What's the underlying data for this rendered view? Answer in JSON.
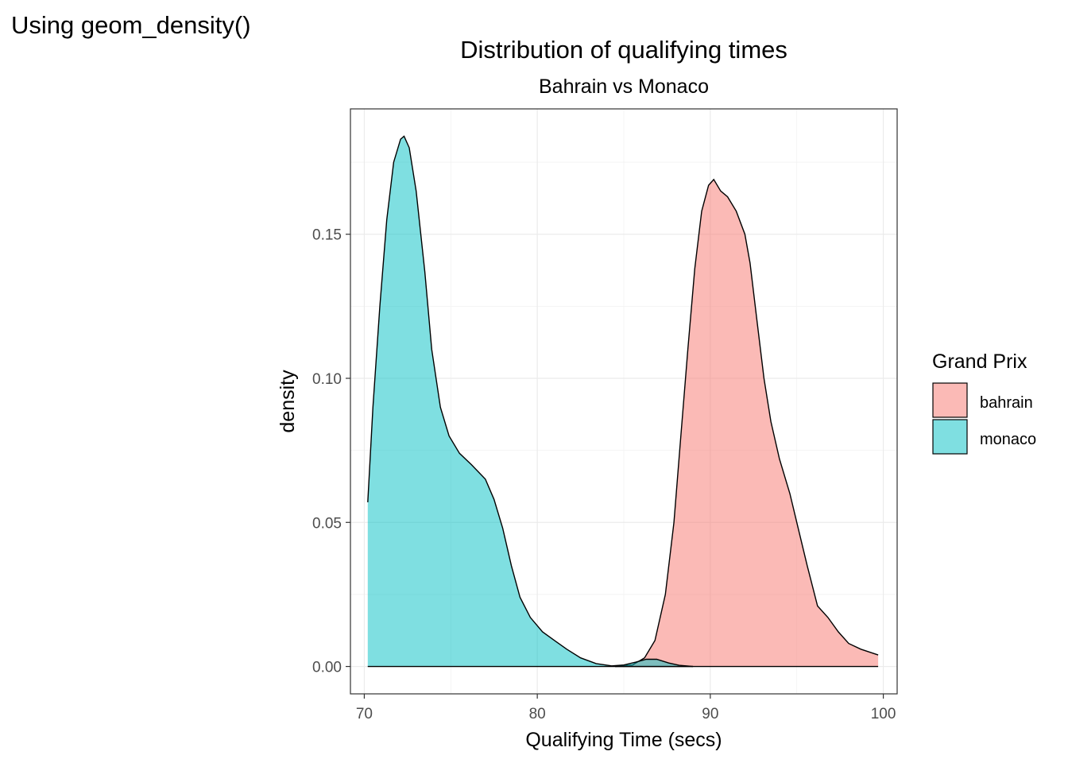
{
  "page_heading": "Using geom_density()",
  "chart_data": {
    "type": "area",
    "subtype": "density",
    "title": "Distribution of qualifying times",
    "subtitle": "Bahrain vs Monaco",
    "xlabel": "Qualifying Time (secs)",
    "ylabel": "density",
    "xlim": [
      69.2,
      100.8
    ],
    "ylim": [
      -0.0095,
      0.1935
    ],
    "x_ticks": [
      70,
      80,
      90,
      100
    ],
    "x_tick_labels": [
      "70",
      "80",
      "90",
      "100"
    ],
    "y_ticks": [
      0,
      0.05,
      0.1,
      0.15
    ],
    "y_tick_labels": [
      "0.00",
      "0.05",
      "0.10",
      "0.15"
    ],
    "grid": true,
    "legend": {
      "title": "Grand Prix",
      "position": "right"
    },
    "series": [
      {
        "name": "bahrain",
        "color": "#F8766D",
        "points": [
          [
            84.5,
            0
          ],
          [
            85.5,
            0.0005
          ],
          [
            86.2,
            0.003
          ],
          [
            86.8,
            0.009
          ],
          [
            87.4,
            0.025
          ],
          [
            87.9,
            0.05
          ],
          [
            88.3,
            0.08
          ],
          [
            88.7,
            0.11
          ],
          [
            89.1,
            0.138
          ],
          [
            89.5,
            0.158
          ],
          [
            89.9,
            0.167
          ],
          [
            90.2,
            0.169
          ],
          [
            90.6,
            0.165
          ],
          [
            91.0,
            0.163
          ],
          [
            91.5,
            0.158
          ],
          [
            92.0,
            0.15
          ],
          [
            92.3,
            0.14
          ],
          [
            92.7,
            0.12
          ],
          [
            93.1,
            0.1
          ],
          [
            93.5,
            0.085
          ],
          [
            94.0,
            0.072
          ],
          [
            94.6,
            0.06
          ],
          [
            95.0,
            0.05
          ],
          [
            95.6,
            0.035
          ],
          [
            96.2,
            0.021
          ],
          [
            96.8,
            0.017
          ],
          [
            97.4,
            0.012
          ],
          [
            98.0,
            0.008
          ],
          [
            98.7,
            0.006
          ],
          [
            99.7,
            0.004
          ]
        ]
      },
      {
        "name": "monaco",
        "color": "#00BFC4",
        "points": [
          [
            70.2,
            0.057
          ],
          [
            70.5,
            0.09
          ],
          [
            70.9,
            0.125
          ],
          [
            71.3,
            0.155
          ],
          [
            71.7,
            0.175
          ],
          [
            72.1,
            0.183
          ],
          [
            72.3,
            0.184
          ],
          [
            72.6,
            0.18
          ],
          [
            73.0,
            0.165
          ],
          [
            73.5,
            0.137
          ],
          [
            73.9,
            0.11
          ],
          [
            74.4,
            0.09
          ],
          [
            74.9,
            0.08
          ],
          [
            75.5,
            0.074
          ],
          [
            76.2,
            0.07
          ],
          [
            77.0,
            0.065
          ],
          [
            77.5,
            0.058
          ],
          [
            78.0,
            0.048
          ],
          [
            78.5,
            0.035
          ],
          [
            79.0,
            0.024
          ],
          [
            79.6,
            0.017
          ],
          [
            80.3,
            0.012
          ],
          [
            81.0,
            0.009
          ],
          [
            81.7,
            0.006
          ],
          [
            82.5,
            0.003
          ],
          [
            83.4,
            0.001
          ],
          [
            84.3,
            0.0002
          ],
          [
            85.0,
            0.0005
          ],
          [
            85.7,
            0.0015
          ],
          [
            86.3,
            0.0025
          ],
          [
            86.9,
            0.0025
          ],
          [
            87.6,
            0.0012
          ],
          [
            88.2,
            0.0004
          ],
          [
            89.0,
            0
          ]
        ]
      }
    ]
  }
}
